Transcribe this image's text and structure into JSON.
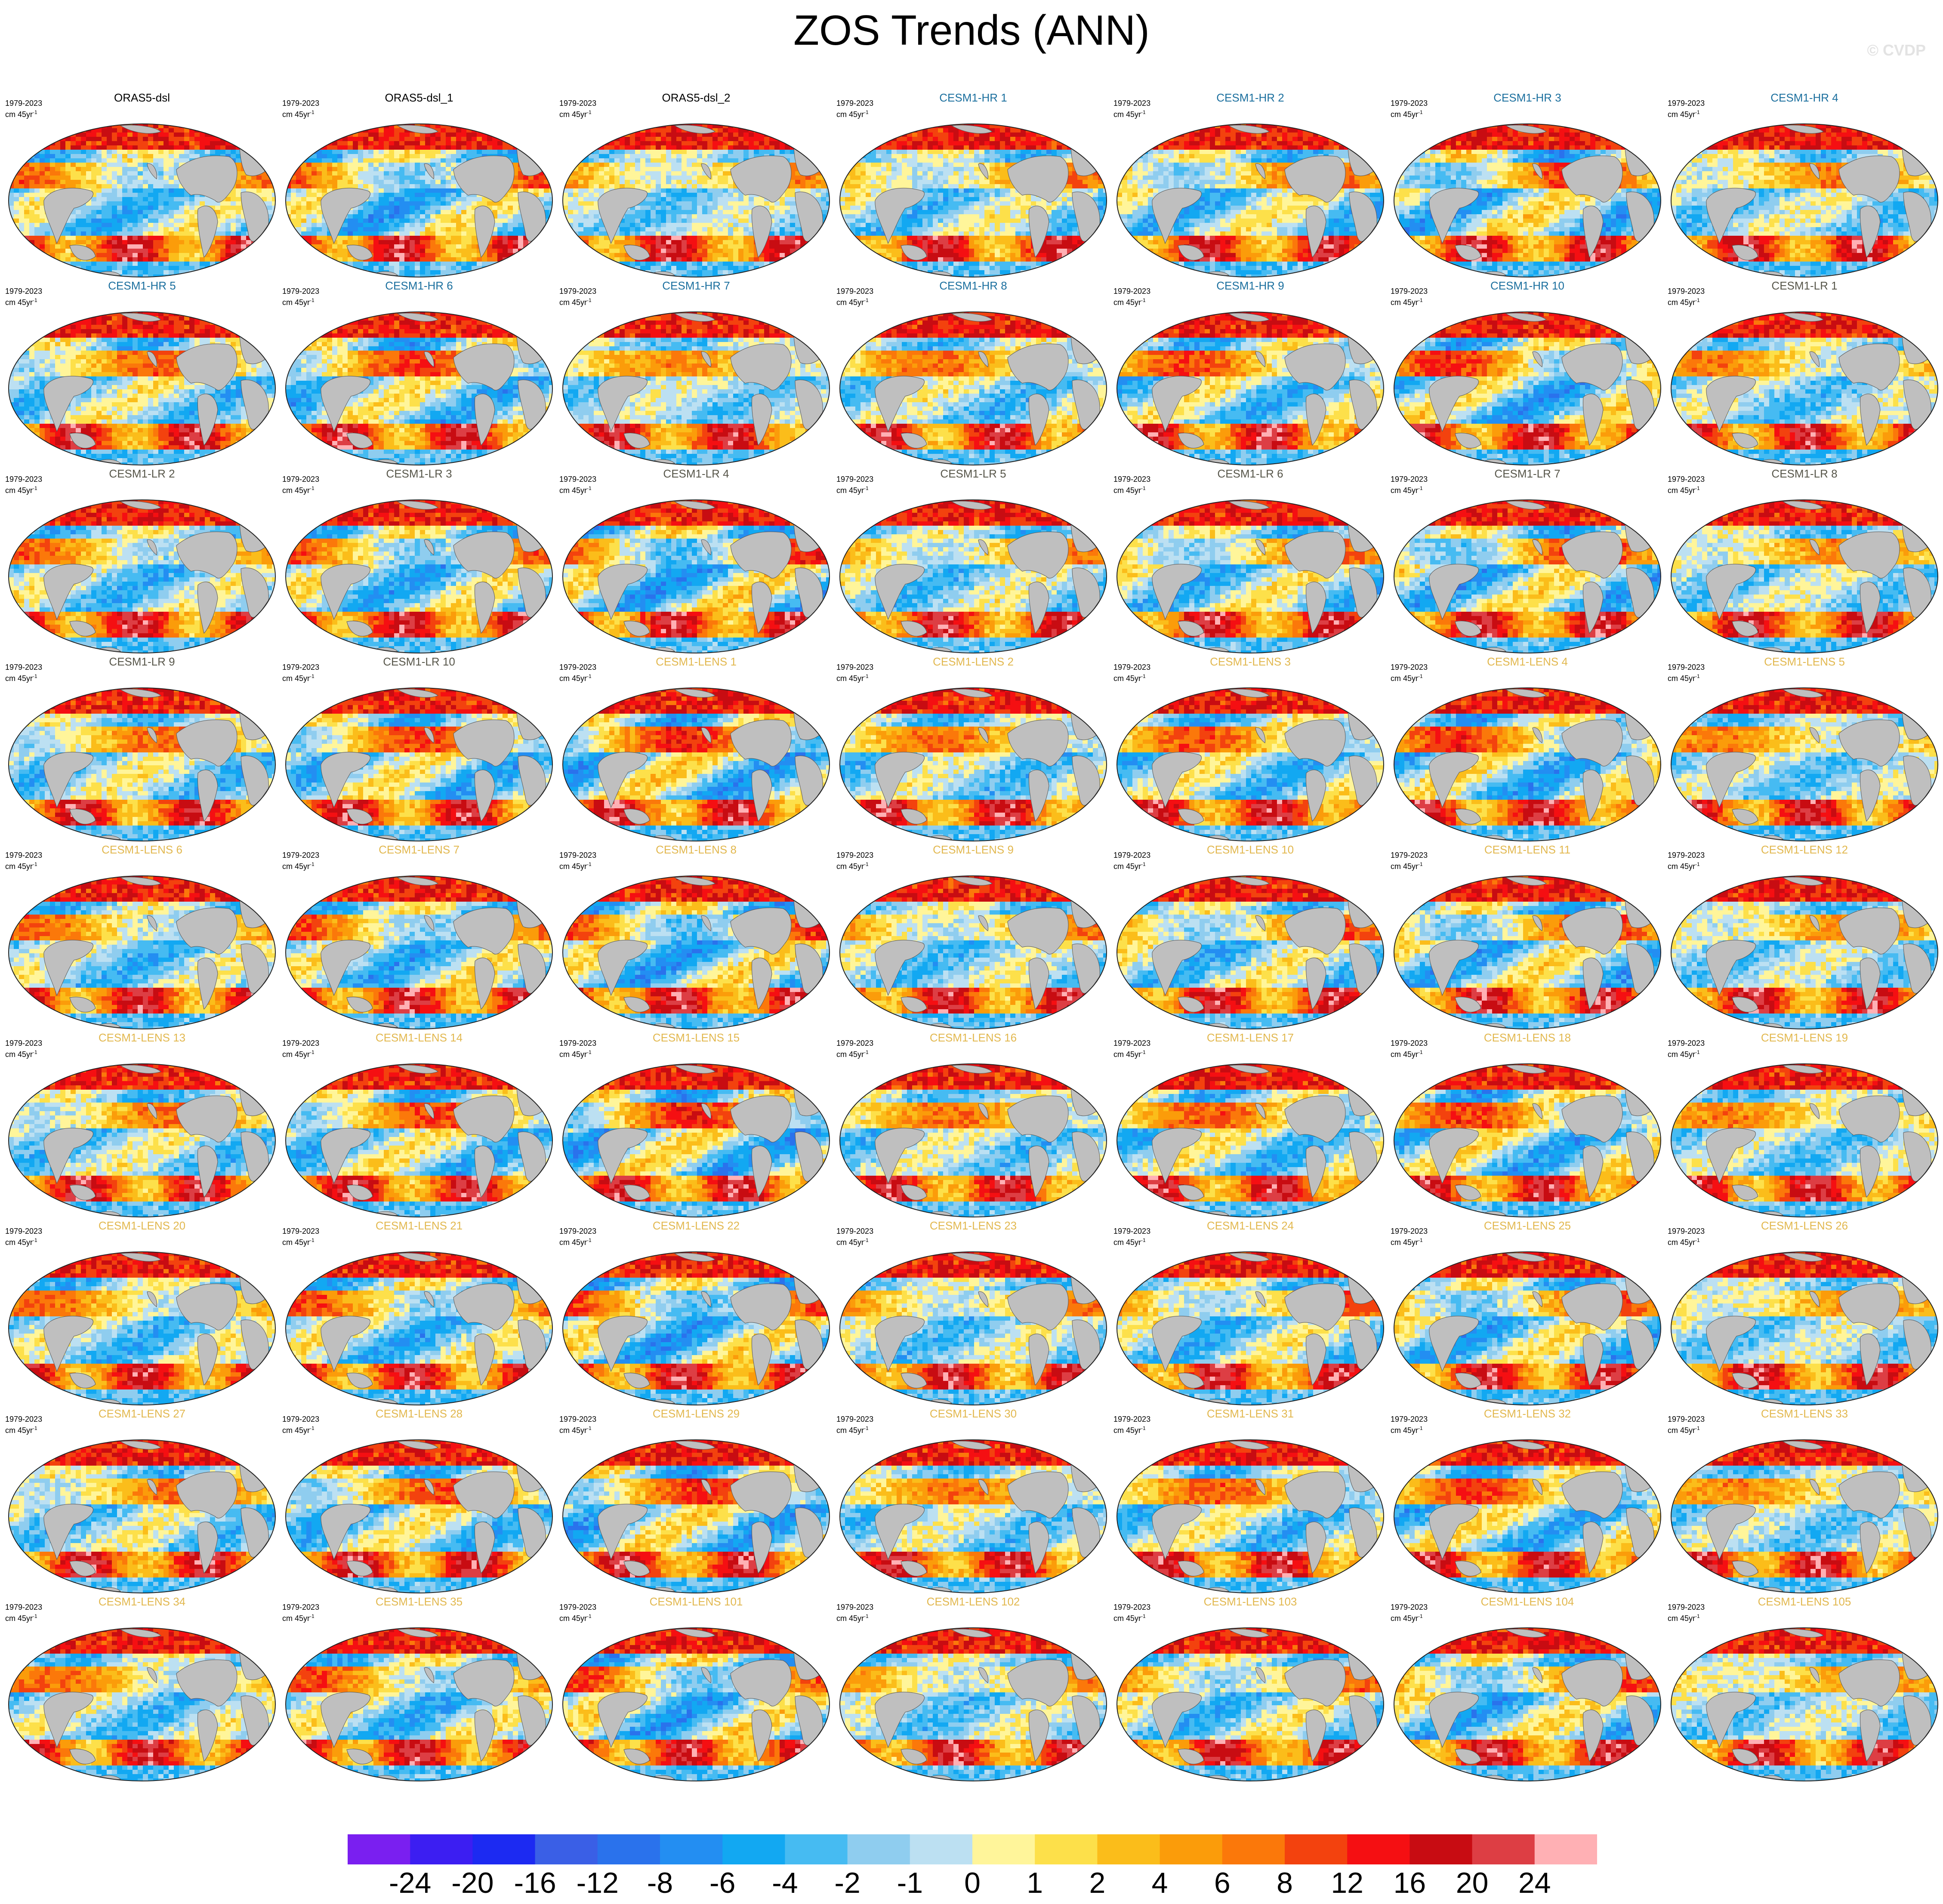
{
  "title": "ZOS Trends (ANN)",
  "watermark": "© CVDP",
  "period_label": "1979-2023",
  "units_prefix": "cm 45yr",
  "units_exp": "-1",
  "colorbar": {
    "labels": [
      "-24",
      "-20",
      "-16",
      "-12",
      "-8",
      "-6",
      "-4",
      "-2",
      "-1",
      "0",
      "1",
      "2",
      "4",
      "6",
      "8",
      "12",
      "16",
      "20",
      "24"
    ],
    "colors": [
      "#7a1ff0",
      "#3c1ef2",
      "#1c2af2",
      "#3a5fe6",
      "#2a72ec",
      "#238ef2",
      "#12a8f2",
      "#46bbf2",
      "#8fcdef",
      "#bce0f2",
      "#fff59a",
      "#fde04a",
      "#fbbd1a",
      "#fb9c0a",
      "#fb780a",
      "#f3420e",
      "#f50f12",
      "#c80c12",
      "#dd3e44",
      "#ffb0b4"
    ]
  },
  "title_colors": {
    "obs": "#000000",
    "hr": "#1b6f9e",
    "lr": "#57564a",
    "lens": "#e2b84f"
  },
  "chart_data": {
    "type": "heatmap",
    "variable": "ZOS",
    "season": "ANN",
    "period": "1979-2023",
    "units": "cm 45yr-1",
    "colorbar_levels": [
      -24,
      -20,
      -16,
      -12,
      -8,
      -6,
      -4,
      -2,
      -1,
      0,
      1,
      2,
      4,
      6,
      8,
      12,
      16,
      20,
      24
    ],
    "panels": [
      {
        "title": "ORAS5-dsl",
        "group": "obs"
      },
      {
        "title": "ORAS5-dsl_1",
        "group": "obs"
      },
      {
        "title": "ORAS5-dsl_2",
        "group": "obs"
      },
      {
        "title": "CESM1-HR 1",
        "group": "hr"
      },
      {
        "title": "CESM1-HR 2",
        "group": "hr"
      },
      {
        "title": "CESM1-HR 3",
        "group": "hr"
      },
      {
        "title": "CESM1-HR 4",
        "group": "hr"
      },
      {
        "title": "CESM1-HR 5",
        "group": "hr"
      },
      {
        "title": "CESM1-HR 6",
        "group": "hr"
      },
      {
        "title": "CESM1-HR 7",
        "group": "hr"
      },
      {
        "title": "CESM1-HR 8",
        "group": "hr"
      },
      {
        "title": "CESM1-HR 9",
        "group": "hr"
      },
      {
        "title": "CESM1-HR 10",
        "group": "hr"
      },
      {
        "title": "CESM1-LR 1",
        "group": "lr"
      },
      {
        "title": "CESM1-LR 2",
        "group": "lr"
      },
      {
        "title": "CESM1-LR 3",
        "group": "lr"
      },
      {
        "title": "CESM1-LR 4",
        "group": "lr"
      },
      {
        "title": "CESM1-LR 5",
        "group": "lr"
      },
      {
        "title": "CESM1-LR 6",
        "group": "lr"
      },
      {
        "title": "CESM1-LR 7",
        "group": "lr"
      },
      {
        "title": "CESM1-LR 8",
        "group": "lr"
      },
      {
        "title": "CESM1-LR 9",
        "group": "lr"
      },
      {
        "title": "CESM1-LR 10",
        "group": "lr"
      },
      {
        "title": "CESM1-LENS 1",
        "group": "lens"
      },
      {
        "title": "CESM1-LENS 2",
        "group": "lens"
      },
      {
        "title": "CESM1-LENS 3",
        "group": "lens"
      },
      {
        "title": "CESM1-LENS 4",
        "group": "lens"
      },
      {
        "title": "CESM1-LENS 5",
        "group": "lens"
      },
      {
        "title": "CESM1-LENS 6",
        "group": "lens"
      },
      {
        "title": "CESM1-LENS 7",
        "group": "lens"
      },
      {
        "title": "CESM1-LENS 8",
        "group": "lens"
      },
      {
        "title": "CESM1-LENS 9",
        "group": "lens"
      },
      {
        "title": "CESM1-LENS 10",
        "group": "lens"
      },
      {
        "title": "CESM1-LENS 11",
        "group": "lens"
      },
      {
        "title": "CESM1-LENS 12",
        "group": "lens"
      },
      {
        "title": "CESM1-LENS 13",
        "group": "lens"
      },
      {
        "title": "CESM1-LENS 14",
        "group": "lens"
      },
      {
        "title": "CESM1-LENS 15",
        "group": "lens"
      },
      {
        "title": "CESM1-LENS 16",
        "group": "lens"
      },
      {
        "title": "CESM1-LENS 17",
        "group": "lens"
      },
      {
        "title": "CESM1-LENS 18",
        "group": "lens"
      },
      {
        "title": "CESM1-LENS 19",
        "group": "lens"
      },
      {
        "title": "CESM1-LENS 20",
        "group": "lens"
      },
      {
        "title": "CESM1-LENS 21",
        "group": "lens"
      },
      {
        "title": "CESM1-LENS 22",
        "group": "lens"
      },
      {
        "title": "CESM1-LENS 23",
        "group": "lens"
      },
      {
        "title": "CESM1-LENS 24",
        "group": "lens"
      },
      {
        "title": "CESM1-LENS 25",
        "group": "lens"
      },
      {
        "title": "CESM1-LENS 26",
        "group": "lens"
      },
      {
        "title": "CESM1-LENS 27",
        "group": "lens"
      },
      {
        "title": "CESM1-LENS 28",
        "group": "lens"
      },
      {
        "title": "CESM1-LENS 29",
        "group": "lens"
      },
      {
        "title": "CESM1-LENS 30",
        "group": "lens"
      },
      {
        "title": "CESM1-LENS 31",
        "group": "lens"
      },
      {
        "title": "CESM1-LENS 32",
        "group": "lens"
      },
      {
        "title": "CESM1-LENS 33",
        "group": "lens"
      },
      {
        "title": "CESM1-LENS 34",
        "group": "lens"
      },
      {
        "title": "CESM1-LENS 35",
        "group": "lens"
      },
      {
        "title": "CESM1-LENS 101",
        "group": "lens"
      },
      {
        "title": "CESM1-LENS 102",
        "group": "lens"
      },
      {
        "title": "CESM1-LENS 103",
        "group": "lens"
      },
      {
        "title": "CESM1-LENS 104",
        "group": "lens"
      },
      {
        "title": "CESM1-LENS 105",
        "group": "lens"
      }
    ]
  }
}
